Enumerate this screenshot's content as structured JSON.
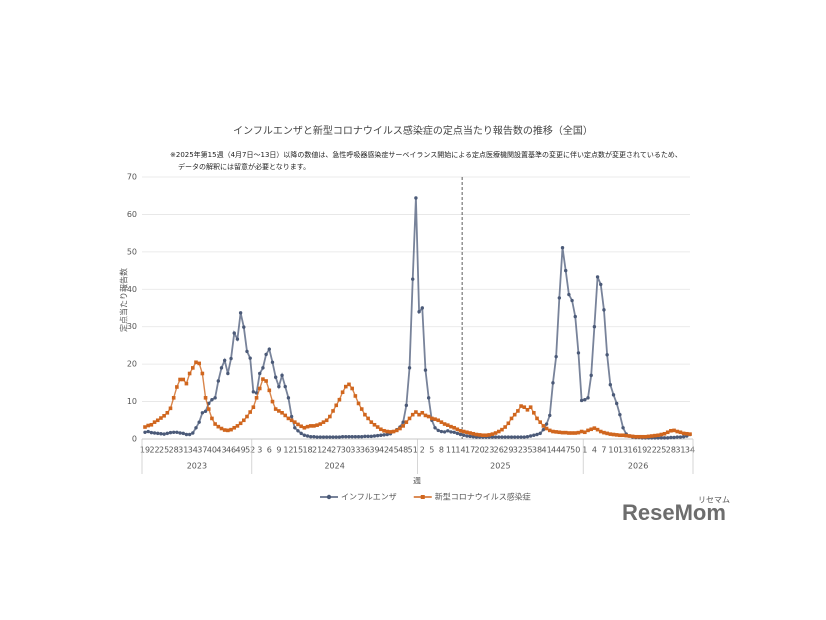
{
  "chart_data": {
    "type": "line",
    "title": "インフルエンザと新型コロナウイルス感染症の定点当たり報告数の推移（全国）",
    "notes": [
      "※2025年第15週（4月7日～13日）以降の数値は、急性呼吸器感染症サーベイランス開始による定点医療機関設置基準の変更に伴い定点数が変更されているため、",
      "データの解釈には留意が必要となります。"
    ],
    "y_label": "定点当たり報告数",
    "x_label": "週",
    "x_groups": [
      "2023",
      "2024",
      "2025",
      "2026"
    ],
    "divider": {
      "year": "2025",
      "week": 15
    },
    "categories": [
      "19",
      null,
      null,
      "22",
      null,
      null,
      "25",
      null,
      null,
      "28",
      null,
      null,
      "31",
      null,
      null,
      "34",
      null,
      null,
      "37",
      null,
      null,
      "40",
      null,
      null,
      "43",
      null,
      null,
      "46",
      null,
      null,
      "49",
      null,
      null,
      "52",
      null,
      null,
      "3",
      null,
      null,
      "6",
      null,
      null,
      "9",
      null,
      null,
      "12",
      null,
      null,
      "15",
      null,
      null,
      "18",
      null,
      null,
      "21",
      null,
      null,
      "24",
      null,
      null,
      "27",
      null,
      null,
      "30",
      null,
      null,
      "33",
      null,
      null,
      "36",
      null,
      null,
      "39",
      null,
      null,
      "42",
      null,
      null,
      "45",
      null,
      null,
      "48",
      null,
      null,
      "51",
      null,
      null,
      "2",
      null,
      null,
      "5",
      null,
      null,
      "8",
      null,
      null,
      "11",
      null,
      null,
      "14",
      null,
      null,
      "17",
      null,
      null,
      "20",
      null,
      null,
      "23",
      null,
      null,
      "26",
      null,
      null,
      "29",
      null,
      null,
      "32",
      null,
      null,
      "35",
      null,
      null,
      "38",
      null,
      null,
      "41",
      null,
      null,
      "44",
      null,
      null,
      "47",
      null,
      null,
      "50",
      null,
      null,
      "1",
      null,
      null,
      "4",
      null,
      null,
      "7",
      null,
      null,
      "10",
      null,
      null,
      "13",
      null,
      null,
      "16",
      null,
      null,
      "19",
      null,
      null,
      "22",
      null,
      null,
      "25",
      null,
      null,
      "28",
      null,
      null,
      "31",
      null,
      null,
      "34"
    ],
    "series": [
      {
        "name": "インフルエンザ",
        "color": "#4b5a78",
        "marker": "circle",
        "values": [
          1.8,
          2.0,
          1.7,
          1.6,
          1.5,
          1.4,
          1.3,
          1.5,
          1.7,
          1.8,
          1.8,
          1.6,
          1.5,
          1.2,
          1.2,
          1.6,
          3.0,
          4.5,
          7.0,
          7.4,
          9.5,
          10.5,
          11.0,
          15.5,
          19.0,
          21.0,
          17.5,
          21.5,
          28.3,
          26.7,
          33.7,
          29.9,
          23.4,
          21.6,
          12.6,
          12.3,
          17.5,
          19,
          22.6,
          24,
          20.5,
          16.5,
          14,
          17,
          14,
          11,
          6,
          3,
          2.2,
          1.5,
          1,
          0.8,
          0.6,
          0.6,
          0.5,
          0.5,
          0.5,
          0.5,
          0.5,
          0.5,
          0.5,
          0.5,
          0.6,
          0.6,
          0.6,
          0.6,
          0.6,
          0.6,
          0.6,
          0.7,
          0.7,
          0.7,
          0.8,
          0.9,
          1.0,
          1.1,
          1.2,
          1.4,
          2,
          2.5,
          3.2,
          4.5,
          9,
          19,
          42.7,
          64.4,
          34,
          35,
          18.4,
          11,
          5,
          3,
          2.3,
          2,
          1.9,
          2.2,
          1.9,
          1.8,
          1.5,
          1.2,
          1.0,
          0.8,
          0.7,
          0.6,
          0.5,
          0.5,
          0.5,
          0.5,
          0.5,
          0.5,
          0.5,
          0.5,
          0.5,
          0.5,
          0.5,
          0.5,
          0.5,
          0.5,
          0.5,
          0.5,
          0.6,
          0.8,
          1,
          1.2,
          1.5,
          2.5,
          4,
          6.3,
          15,
          22,
          37.7,
          51.1,
          45,
          38.6,
          37,
          32.7,
          23,
          10.3,
          10.5,
          11,
          17,
          30,
          43.3,
          41.3,
          34.5,
          22.5,
          14.5,
          11.8,
          9.5,
          6.5,
          3,
          1.3,
          0.8,
          0.5,
          0.4,
          0.4,
          0.3,
          0.3,
          0.3,
          0.3,
          0.3,
          0.3,
          0.3,
          0.3,
          0.3,
          0.4,
          0.4,
          0.5,
          0.5,
          0.6,
          0.8,
          1.2
        ]
      },
      {
        "name": "新型コロナウイルス感染症",
        "color": "#d0661e",
        "marker": "square",
        "values": [
          3.2,
          3.6,
          3.8,
          4.5,
          5,
          5.6,
          6.2,
          7,
          8.2,
          11,
          13.9,
          15.9,
          15.9,
          14.8,
          17.5,
          19,
          20.5,
          20.2,
          17.5,
          11,
          8,
          5.5,
          4,
          3.3,
          2.8,
          2.4,
          2.3,
          2.5,
          3,
          3.5,
          4.2,
          5,
          6,
          7.2,
          8.5,
          11,
          13.5,
          16,
          15.5,
          13,
          10,
          8,
          7.5,
          7,
          6.3,
          5.5,
          5,
          4.5,
          3.9,
          3.4,
          3.0,
          3.3,
          3.5,
          3.5,
          3.7,
          4.0,
          4.5,
          5.0,
          6.0,
          7.5,
          9.0,
          10.5,
          12.5,
          14.0,
          14.6,
          13.5,
          11.5,
          9.5,
          8.0,
          6.5,
          5.5,
          4.5,
          3.8,
          3.2,
          2.6,
          2.2,
          2.0,
          1.9,
          2.0,
          2.3,
          2.8,
          3.5,
          4.5,
          5.5,
          6.5,
          7.2,
          6.5,
          7.0,
          6.3,
          6.0,
          5.5,
          5.3,
          5.0,
          4.5,
          4.0,
          3.7,
          3.3,
          3.0,
          2.6,
          2.2,
          2.0,
          1.8,
          1.6,
          1.4,
          1.2,
          1.1,
          1.0,
          1.0,
          1.1,
          1.3,
          1.6,
          2.0,
          2.5,
          3.2,
          4.2,
          5.5,
          6.5,
          7.5,
          8.8,
          8.5,
          7.8,
          8.5,
          7.0,
          5.5,
          4.5,
          3.5,
          2.8,
          2.3,
          2.0,
          1.9,
          1.8,
          1.7,
          1.7,
          1.6,
          1.6,
          1.6,
          1.7,
          2.0,
          1.8,
          2.3,
          2.6,
          2.9,
          2.5,
          2.0,
          1.7,
          1.5,
          1.3,
          1.2,
          1.1,
          1.0,
          1.0,
          0.9,
          0.8,
          0.7,
          0.6,
          0.6,
          0.6,
          0.6,
          0.7,
          0.8,
          0.9,
          1.0,
          1.2,
          1.4,
          1.8,
          2.2,
          2.3,
          2.0,
          1.8,
          1.5,
          1.4,
          1.3
        ]
      }
    ],
    "ylim": [
      0,
      70
    ],
    "yticks": [
      0,
      10,
      20,
      30,
      40,
      50,
      60,
      70
    ],
    "grid": true,
    "legend": "bottom",
    "watermark": {
      "text": "ReseMom",
      "ruby": "リセマム"
    }
  }
}
